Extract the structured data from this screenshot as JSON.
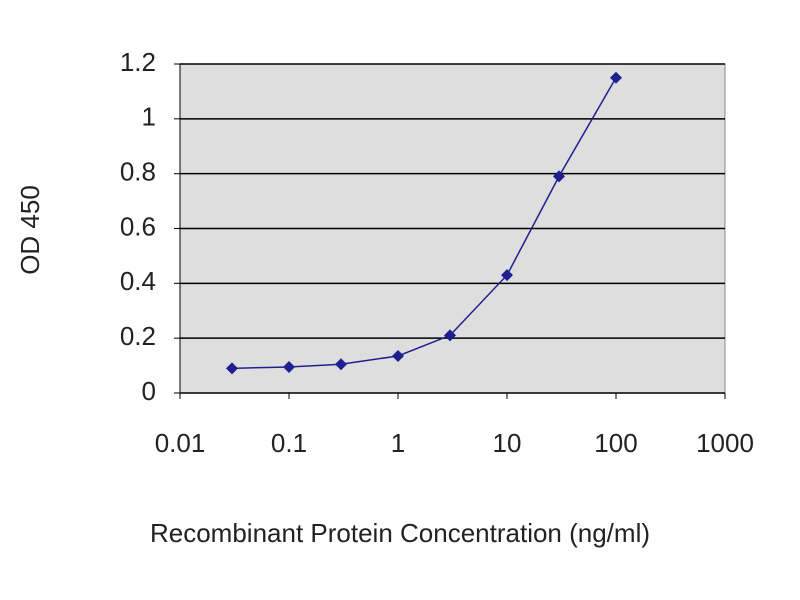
{
  "chart_data": {
    "type": "line",
    "xlabel": "Recombinant Protein Concentration (ng/ml)",
    "ylabel": "OD 450",
    "x": [
      0.03,
      0.1,
      0.3,
      1,
      3,
      10,
      30,
      100
    ],
    "series": [
      {
        "color": "#1f1f8f",
        "values": [
          0.09,
          0.095,
          0.105,
          0.135,
          0.21,
          0.43,
          0.79,
          1.15
        ]
      }
    ],
    "xlim": [
      0.01,
      1000
    ],
    "xticks": [
      0.01,
      0.1,
      1,
      10,
      100,
      1000
    ],
    "xlog": true,
    "ylim": [
      0,
      1.2
    ],
    "yticks": [
      0,
      0.2,
      0.4,
      0.6,
      0.8,
      1,
      1.2
    ],
    "grid": true
  }
}
